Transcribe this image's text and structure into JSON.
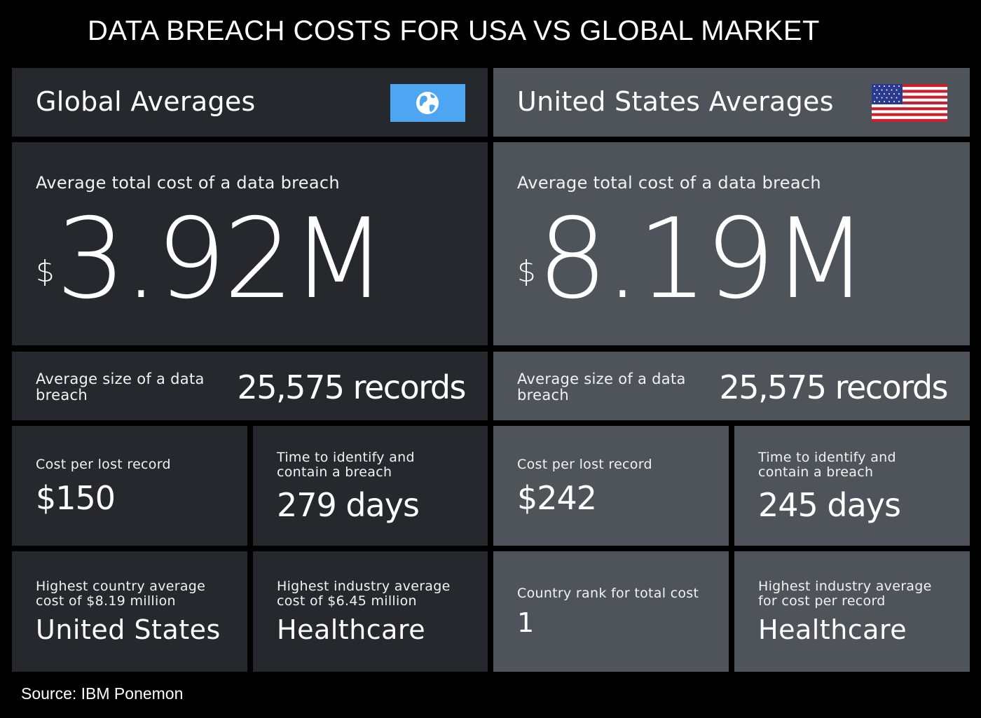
{
  "title": "DATA BREACH COSTS FOR USA VS GLOBAL MARKET",
  "source": "Source: IBM Ponemon",
  "colors": {
    "global_panel": "#25292e",
    "us_panel": "#4f535a",
    "globe_badge": "#4ea6f2"
  },
  "global": {
    "header": "Global Averages",
    "header_icon": "globe-icon",
    "total_cost_label": "Average total cost of a data breach",
    "total_cost_currency": "$",
    "total_cost_value": "3.92M",
    "size_label": "Average size of a data breach",
    "size_value": "25,575 records",
    "cost_per_record_label": "Cost per lost record",
    "cost_per_record_value": "$150",
    "time_label": "Time to identify and contain a breach",
    "time_value": "279 days",
    "highest_country_label": "Highest country average cost of $8.19 million",
    "highest_country_value": "United States",
    "highest_industry_label": "Highest industry average cost of $6.45 million",
    "highest_industry_value": "Healthcare"
  },
  "us": {
    "header": "United States Averages",
    "header_icon": "us-flag-icon",
    "total_cost_label": "Average total cost of a data breach",
    "total_cost_currency": "$",
    "total_cost_value": "8.19M",
    "size_label": "Average size of a data breach",
    "size_value": "25,575 records",
    "cost_per_record_label": "Cost per lost record",
    "cost_per_record_value": "$242",
    "time_label": "Time to identify and contain a breach",
    "time_value": "245 days",
    "country_rank_label": "Country rank for total cost",
    "country_rank_value": "1",
    "highest_industry_label": "Highest industry average for cost per record",
    "highest_industry_value": "Healthcare"
  }
}
